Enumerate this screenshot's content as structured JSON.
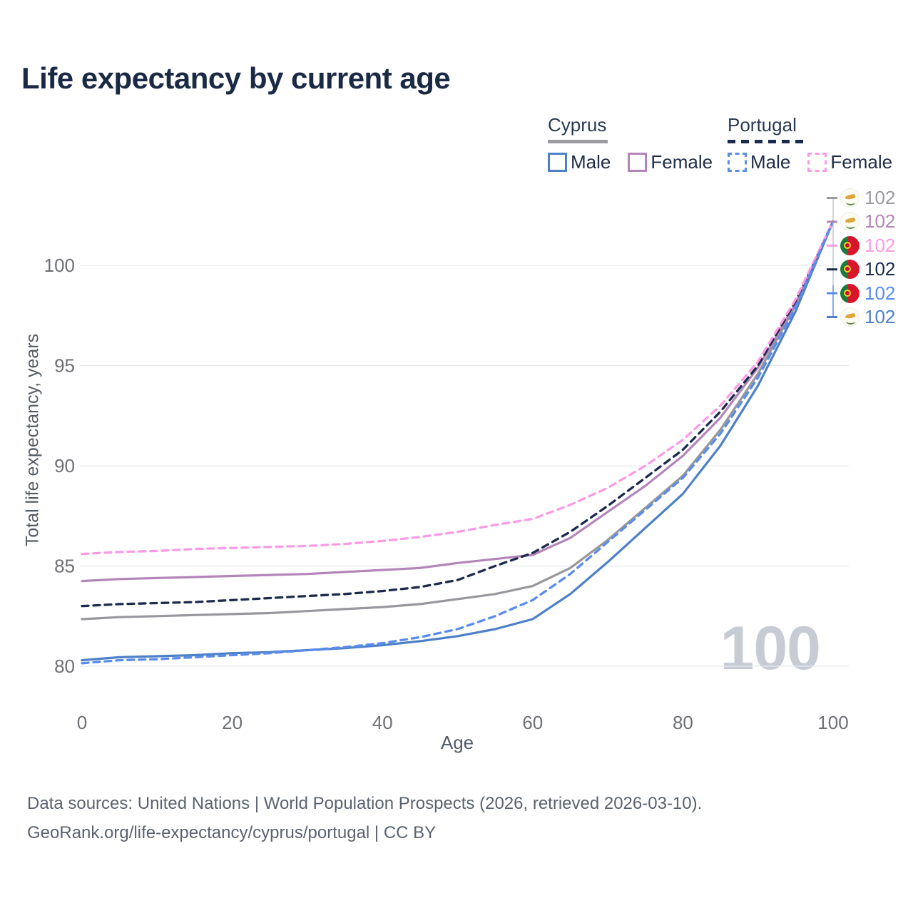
{
  "title": "Life expectancy by current age",
  "watermark": "100",
  "legend": {
    "groups": [
      {
        "label": "Cyprus",
        "style": "solid",
        "underline_color": "#9b9ba1",
        "items": [
          {
            "label": "Male",
            "color": "#4e80c8",
            "dashed": false
          },
          {
            "label": "Female",
            "color": "#b385b9",
            "dashed": false
          }
        ]
      },
      {
        "label": "Portugal",
        "style": "dashed",
        "underline_color": "#1c2b4d",
        "items": [
          {
            "label": "Male",
            "color": "#5a8cec",
            "dashed": true
          },
          {
            "label": "Female",
            "color": "#fb9be4",
            "dashed": true
          }
        ]
      }
    ]
  },
  "chart_data": {
    "type": "line",
    "title": "Life expectancy by current age",
    "xlabel": "Age",
    "ylabel": "Total life expectancy, years",
    "x_ticks": [
      0,
      20,
      40,
      60,
      80,
      100
    ],
    "y_ticks": [
      80,
      85,
      90,
      95,
      100
    ],
    "xlim": [
      0,
      100
    ],
    "ylim": [
      79,
      102.5
    ],
    "grid": true,
    "legend_position": "top-right",
    "x": [
      0,
      5,
      10,
      15,
      20,
      25,
      30,
      35,
      40,
      45,
      50,
      55,
      60,
      65,
      70,
      75,
      80,
      85,
      90,
      95,
      100
    ],
    "series": [
      {
        "name": "Cyprus",
        "country": "Cyprus",
        "sex": "Both",
        "color": "#97989d",
        "dashed": false,
        "values": [
          82.35,
          82.45,
          82.5,
          82.55,
          82.6,
          82.65,
          82.75,
          82.85,
          82.95,
          83.1,
          83.35,
          83.6,
          84.0,
          84.9,
          86.3,
          87.9,
          89.5,
          91.8,
          94.6,
          98.0,
          102.2
        ]
      },
      {
        "name": "Cyprus Female",
        "country": "Cyprus",
        "sex": "Female",
        "color": "#b385b9",
        "dashed": false,
        "values": [
          84.25,
          84.35,
          84.4,
          84.45,
          84.5,
          84.55,
          84.6,
          84.7,
          84.8,
          84.9,
          85.15,
          85.35,
          85.55,
          86.4,
          87.7,
          89.0,
          90.5,
          92.4,
          94.9,
          98.1,
          102.2
        ]
      },
      {
        "name": "Cyprus Male",
        "country": "Cyprus",
        "sex": "Male",
        "color": "#4e80c8",
        "dashed": false,
        "values": [
          80.3,
          80.45,
          80.5,
          80.55,
          80.65,
          80.7,
          80.8,
          80.9,
          81.05,
          81.25,
          81.5,
          81.85,
          82.35,
          83.6,
          85.2,
          86.9,
          88.6,
          91.0,
          94.0,
          97.7,
          102.2
        ]
      },
      {
        "name": "Portugal",
        "country": "Portugal",
        "sex": "Both",
        "color": "#1c2b4d",
        "dashed": true,
        "values": [
          83.0,
          83.1,
          83.15,
          83.2,
          83.3,
          83.4,
          83.5,
          83.6,
          83.75,
          83.95,
          84.3,
          85.0,
          85.65,
          86.7,
          88.0,
          89.4,
          90.8,
          92.7,
          95.0,
          98.2,
          102.2
        ]
      },
      {
        "name": "Portugal Female",
        "country": "Portugal",
        "sex": "Female",
        "color": "#fb9be4",
        "dashed": true,
        "values": [
          85.6,
          85.7,
          85.75,
          85.85,
          85.9,
          85.95,
          86.0,
          86.1,
          86.25,
          86.45,
          86.7,
          87.05,
          87.35,
          88.05,
          88.9,
          90.0,
          91.3,
          93.0,
          95.2,
          98.3,
          102.2
        ]
      },
      {
        "name": "Portugal Male",
        "country": "Portugal",
        "sex": "Male",
        "color": "#5a8cec",
        "dashed": true,
        "values": [
          80.15,
          80.3,
          80.35,
          80.45,
          80.55,
          80.65,
          80.8,
          80.95,
          81.15,
          81.45,
          81.85,
          82.5,
          83.3,
          84.6,
          86.2,
          87.8,
          89.4,
          91.6,
          94.4,
          97.9,
          102.2
        ]
      }
    ]
  },
  "end_labels": [
    {
      "series": "Cyprus",
      "flag": "cyprus",
      "color": "#9a9ba1",
      "value": "102"
    },
    {
      "series": "Cyprus Female",
      "flag": "cyprus",
      "color": "#b385b9",
      "value": "102"
    },
    {
      "series": "Portugal Female",
      "flag": "portugal",
      "color": "#fb9be4",
      "value": "102"
    },
    {
      "series": "Portugal",
      "flag": "portugal",
      "color": "#1c2b4d",
      "value": "102"
    },
    {
      "series": "Portugal Male",
      "flag": "portugal",
      "color": "#5a8cec",
      "value": "102"
    },
    {
      "series": "Cyprus Male",
      "flag": "cyprus",
      "color": "#4e80c8",
      "value": "102"
    }
  ],
  "footer": {
    "line1": "Data sources: United Nations | World Population Prospects (2026, retrieved 2026-03-10).",
    "line2": "GeoRank.org/life-expectancy/cyprus/portugal | CC BY"
  }
}
